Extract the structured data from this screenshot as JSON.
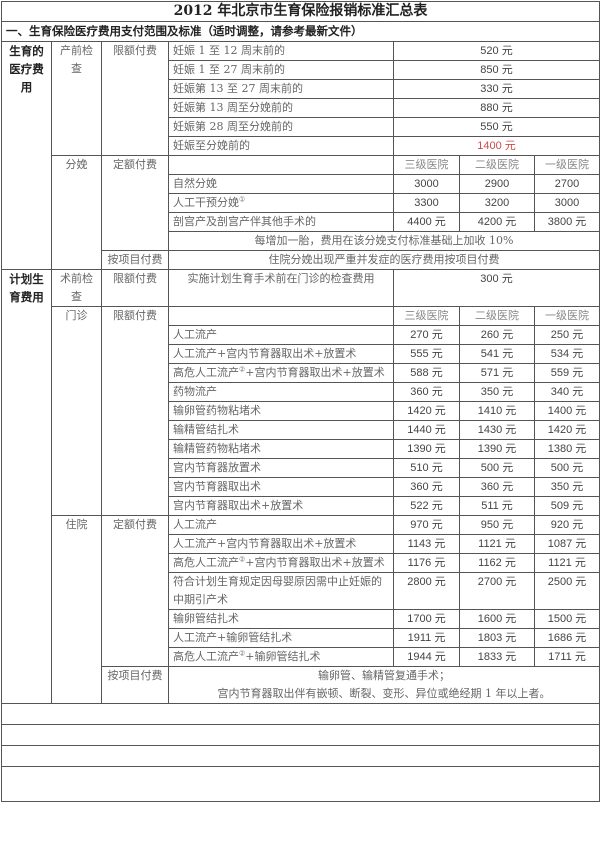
{
  "title": "2012 年北京市生育保险报销标准汇总表",
  "section": "一、生育保险医疗费用支付范围及标准（适时调整，请参考最新文件）",
  "hospital_levels": [
    "三级医院",
    "二级医院",
    "一级医院"
  ],
  "colors": {
    "highlight": "#d04848",
    "text": "#666666",
    "border": "#555555"
  },
  "maternity": {
    "category": "生育的医疗费用",
    "prenatal": {
      "label": "产前检查",
      "payment": "限额付费",
      "items": [
        {
          "name": "妊娠 1 至 12 周末前的",
          "amount": "520 元"
        },
        {
          "name": "妊娠 1 至 27 周末前的",
          "amount": "850 元"
        },
        {
          "name": "妊娠第 13 至 27 周末前的",
          "amount": "330 元"
        },
        {
          "name": "妊娠第 13 周至分娩前的",
          "amount": "880 元"
        },
        {
          "name": "妊娠第 28 周至分娩前的",
          "amount": "550 元"
        },
        {
          "name": "妊娠至分娩前的",
          "amount": "1400 元",
          "highlight": true
        }
      ]
    },
    "delivery": {
      "label": "分娩",
      "payment": "定额付费",
      "items": [
        {
          "name": "自然分娩",
          "values": [
            "3000",
            "2900",
            "2700"
          ]
        },
        {
          "name": "人工干预分娩",
          "sup": "①",
          "values": [
            "3300",
            "3200",
            "3000"
          ]
        },
        {
          "name": "剖宫产及剖宫产伴其他手术的",
          "values": [
            "4400 元",
            "4200 元",
            "3800 元"
          ]
        }
      ],
      "note": "每增加一胎，费用在该分娩支付标准基础上加收 10%",
      "item_payment": "按项目付费",
      "item_note": "住院分娩出现严重并发症的医疗费用按项目付费"
    }
  },
  "family_planning": {
    "category": "计划生育费用",
    "pre_op": {
      "label": "术前检查",
      "payment": "限额付费",
      "item": "实施计划生育手术前在门诊的检查费用",
      "amount": "300 元"
    },
    "outpatient": {
      "label": "门诊",
      "payment": "限额付费",
      "items": [
        {
          "name": "人工流产",
          "values": [
            "270 元",
            "260 元",
            "250 元"
          ]
        },
        {
          "name": "人工流产+宫内节育器取出术+放置术",
          "values": [
            "555 元",
            "541 元",
            "534 元"
          ]
        },
        {
          "name": "高危人工流产",
          "sup": "②",
          "suffix": "+宫内节育器取出术+放置术",
          "values": [
            "588 元",
            "571 元",
            "559 元"
          ]
        },
        {
          "name": "药物流产",
          "values": [
            "360 元",
            "350 元",
            "340 元"
          ]
        },
        {
          "name": "输卵管药物粘堵术",
          "values": [
            "1420 元",
            "1410 元",
            "1400 元"
          ]
        },
        {
          "name": "输精管结扎术",
          "values": [
            "1440 元",
            "1430 元",
            "1420 元"
          ]
        },
        {
          "name": "输精管药物粘堵术",
          "values": [
            "1390 元",
            "1390 元",
            "1380 元"
          ]
        },
        {
          "name": "宫内节育器放置术",
          "values": [
            "510 元",
            "500 元",
            "500 元"
          ]
        },
        {
          "name": "宫内节育器取出术",
          "values": [
            "360 元",
            "360 元",
            "350 元"
          ]
        },
        {
          "name": "宫内节育器取出术+放置术",
          "values": [
            "522 元",
            "511 元",
            "509 元"
          ]
        }
      ]
    },
    "inpatient": {
      "label": "住院",
      "payment": "定额付费",
      "items": [
        {
          "name": "人工流产",
          "values": [
            "970 元",
            "950 元",
            "920 元"
          ]
        },
        {
          "name": "人工流产+宫内节育器取出术+放置术",
          "values": [
            "1143 元",
            "1121 元",
            "1087 元"
          ]
        },
        {
          "name": "高危人工流产",
          "sup": "②",
          "suffix": "+宫内节育器取出术+放置术",
          "values": [
            "1176 元",
            "1162 元",
            "1121 元"
          ]
        },
        {
          "name": "符合计划生育规定因母婴原因需中止妊娠的中期引产术",
          "values": [
            "2800 元",
            "2700 元",
            "2500 元"
          ]
        },
        {
          "name": "输卵管结扎术",
          "values": [
            "1700 元",
            "1600 元",
            "1500 元"
          ]
        },
        {
          "name": "人工流产+输卵管结扎术",
          "values": [
            "1911 元",
            "1803 元",
            "1686 元"
          ]
        },
        {
          "name": "高危人工流产",
          "sup": "②",
          "suffix": "+输卵管结扎术",
          "values": [
            "1944 元",
            "1833 元",
            "1711 元"
          ]
        }
      ],
      "item_payment": "按项目付费",
      "item_notes": [
        "输卵管、输精管复通手术；",
        "宫内节育器取出伴有嵌顿、断裂、变形、异位或绝经期 1 年以上者。"
      ]
    }
  }
}
